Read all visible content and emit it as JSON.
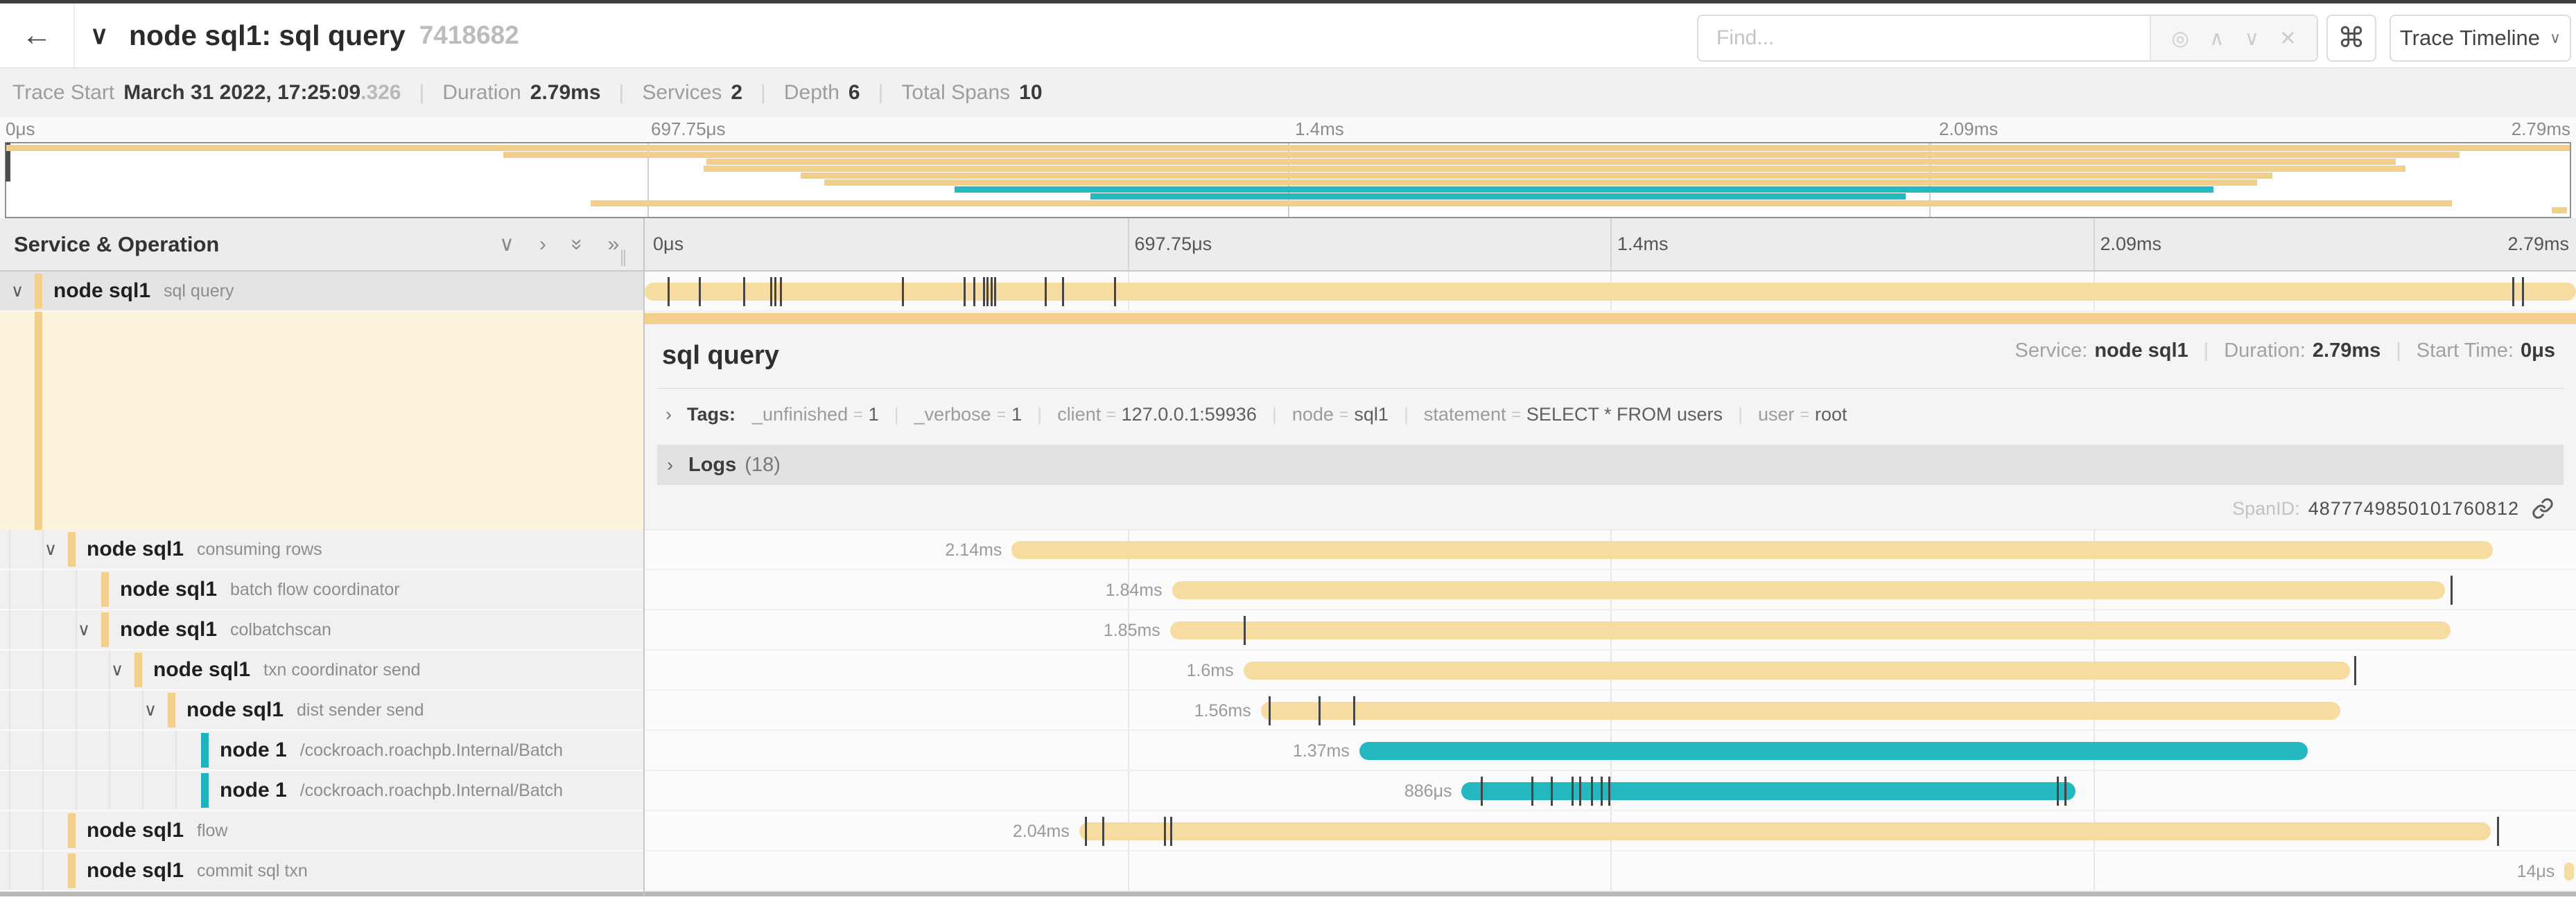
{
  "header": {
    "back_icon": "←",
    "collapse_icon": "∨",
    "title": "node sql1: sql query",
    "trace_id": "7418682",
    "find_placeholder": "Find...",
    "find_icons": [
      {
        "name": "locate-icon",
        "glyph": "◎"
      },
      {
        "name": "prev-result-icon",
        "glyph": "∧"
      },
      {
        "name": "next-result-icon",
        "glyph": "∨"
      },
      {
        "name": "clear-search-icon",
        "glyph": "✕"
      }
    ],
    "shortcut_icon": "⌘",
    "view_selector_label": "Trace Timeline",
    "view_selector_chevron": "∨"
  },
  "trace_info": {
    "items": [
      {
        "label": "Trace Start",
        "value": "March 31 2022, 17:25:09",
        "suffix": ".326"
      },
      {
        "label": "Duration",
        "value": "2.79ms"
      },
      {
        "label": "Services",
        "value": "2"
      },
      {
        "label": "Depth",
        "value": "6"
      },
      {
        "label": "Total Spans",
        "value": "10"
      }
    ]
  },
  "minimap": {
    "axis_ticks": [
      "0μs",
      "697.75μs",
      "1.4ms",
      "2.09ms",
      "2.79ms"
    ],
    "strips": [
      {
        "start": 0,
        "width": 100,
        "color": "orange"
      },
      {
        "start": 19.4,
        "width": 76.3,
        "color": "orange"
      },
      {
        "start": 27.3,
        "width": 65.9,
        "color": "orange"
      },
      {
        "start": 27.2,
        "width": 66.4,
        "color": "orange"
      },
      {
        "start": 31.0,
        "width": 57.4,
        "color": "orange"
      },
      {
        "start": 31.9,
        "width": 55.9,
        "color": "orange"
      },
      {
        "start": 37.0,
        "width": 49.1,
        "color": "teal"
      },
      {
        "start": 42.3,
        "width": 31.8,
        "color": "teal"
      },
      {
        "start": 22.8,
        "width": 72.6,
        "color": "orange"
      },
      {
        "start": 99.3,
        "width": 0.6,
        "color": "orange"
      }
    ]
  },
  "timeline_header": {
    "left_title": "Service & Operation",
    "controls": [
      {
        "name": "collapse-one-icon",
        "glyph": "∨",
        "rotate": 0
      },
      {
        "name": "expand-one-icon",
        "glyph": "›",
        "rotate": 0
      },
      {
        "name": "collapse-all-icon",
        "glyph": "»",
        "rotate": 90
      },
      {
        "name": "expand-all-icon",
        "glyph": "»",
        "rotate": 0
      }
    ],
    "axis_ticks": [
      "0μs",
      "697.75μs",
      "1.4ms",
      "2.09ms",
      "2.79ms"
    ]
  },
  "spans": [
    {
      "service": "node sql1",
      "operation": "sql query",
      "depth": 0,
      "color": "orange",
      "chevron": true,
      "selected": true,
      "start": 0,
      "width": 100,
      "duration_label": "",
      "ticks": [
        1.2,
        2.8,
        5.1,
        6.5,
        6.7,
        7.0,
        13.3,
        16.5,
        17.0,
        17.5,
        17.7,
        17.9,
        18.1,
        20.7,
        21.6,
        24.3,
        96.7,
        97.2
      ]
    },
    {
      "service": "node sql1",
      "operation": "consuming rows",
      "depth": 1,
      "color": "orange",
      "chevron": true,
      "selected": false,
      "start": 19.0,
      "width": 76.7,
      "duration_label": "2.14ms",
      "ticks": []
    },
    {
      "service": "node sql1",
      "operation": "batch flow coordinator",
      "depth": 2,
      "color": "orange",
      "chevron": false,
      "selected": false,
      "start": 27.3,
      "width": 65.9,
      "duration_label": "1.84ms",
      "ticks": [
        93.5
      ]
    },
    {
      "service": "node sql1",
      "operation": "colbatchscan",
      "depth": 2,
      "color": "orange",
      "chevron": true,
      "selected": false,
      "start": 27.2,
      "width": 66.3,
      "duration_label": "1.85ms",
      "ticks": [
        31.0
      ]
    },
    {
      "service": "node sql1",
      "operation": "txn coordinator send",
      "depth": 3,
      "color": "orange",
      "chevron": true,
      "selected": false,
      "start": 31.0,
      "width": 57.3,
      "duration_label": "1.6ms",
      "ticks": [
        88.5
      ]
    },
    {
      "service": "node sql1",
      "operation": "dist sender send",
      "depth": 4,
      "color": "orange",
      "chevron": true,
      "selected": false,
      "start": 31.9,
      "width": 55.9,
      "duration_label": "1.56ms",
      "ticks": [
        32.3,
        34.9,
        36.7
      ]
    },
    {
      "service": "node 1",
      "operation": "/cockroach.roachpb.Internal/Batch",
      "depth": 5,
      "color": "teal",
      "chevron": false,
      "selected": false,
      "start": 37.0,
      "width": 49.1,
      "duration_label": "1.37ms",
      "ticks": []
    },
    {
      "service": "node 1",
      "operation": "/cockroach.roachpb.Internal/Batch",
      "depth": 5,
      "color": "teal",
      "chevron": false,
      "selected": false,
      "start": 42.3,
      "width": 31.8,
      "duration_label": "886μs",
      "ticks": [
        43.3,
        45.9,
        46.9,
        48.0,
        48.4,
        49.0,
        49.5,
        49.9,
        73.1,
        73.5
      ]
    },
    {
      "service": "node sql1",
      "operation": "flow",
      "depth": 1,
      "color": "orange",
      "chevron": false,
      "selected": false,
      "start": 22.5,
      "width": 73.1,
      "duration_label": "2.04ms",
      "ticks": [
        22.8,
        23.7,
        26.9,
        27.2,
        95.9
      ]
    },
    {
      "service": "node sql1",
      "operation": "commit sql txn",
      "depth": 1,
      "color": "orange",
      "chevron": false,
      "selected": false,
      "start": 99.4,
      "width": 0.5,
      "duration_label": "14μs",
      "ticks": []
    }
  ],
  "detail": {
    "title": "sql query",
    "service_label": "Service:",
    "service": "node sql1",
    "duration_label": "Duration:",
    "duration": "2.79ms",
    "start_label": "Start Time:",
    "start": "0μs",
    "tags_chevron": "›",
    "tags_label": "Tags:",
    "tags": [
      {
        "key": "_unfinished",
        "value": "1"
      },
      {
        "key": "_verbose",
        "value": "1"
      },
      {
        "key": "client",
        "value": "127.0.0.1:59936"
      },
      {
        "key": "node",
        "value": "sql1"
      },
      {
        "key": "statement",
        "value": "SELECT * FROM users"
      },
      {
        "key": "user",
        "value": "root"
      }
    ],
    "logs_chevron": "›",
    "logs_label": "Logs",
    "logs_count": "(18)",
    "spanid_label": "SpanID:",
    "spanid": "4877749850101760812"
  },
  "colors": {
    "orange_bar": "#F7DCA2",
    "orange_accent": "#F2CF8B",
    "teal_bar": "#24B8C0",
    "teal_accent": "#1FB2BC",
    "tick": "#454545"
  }
}
